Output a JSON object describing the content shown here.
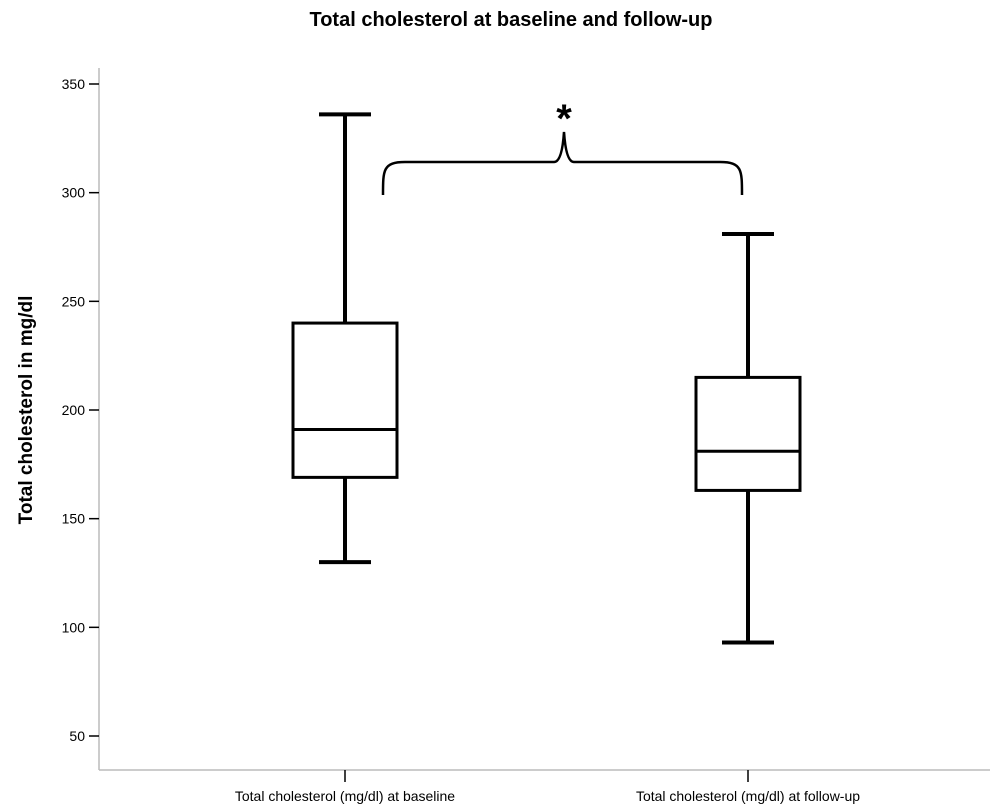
{
  "chart_data": {
    "type": "boxplot",
    "title": "Total cholesterol at baseline and follow-up",
    "xlabel": "",
    "ylabel": "Total cholesterol in mg/dl",
    "ylim": [
      35,
      352
    ],
    "yticks": [
      50,
      100,
      150,
      200,
      250,
      300,
      350
    ],
    "grid": false,
    "categories": [
      "Total cholesterol (mg/dl) at baseline",
      "Total cholesterol (mg/dl) at follow-up"
    ],
    "boxes": [
      {
        "min": 130,
        "q1": 169,
        "median": 191,
        "q3": 240,
        "max": 336
      },
      {
        "min": 93,
        "q1": 163,
        "median": 181,
        "q3": 215,
        "max": 281
      }
    ],
    "annotation": {
      "text": "*",
      "between": [
        0,
        1
      ]
    },
    "colors": {
      "line": "#000000",
      "axis": "#bbbbbb",
      "box_fill": "#ffffff"
    }
  }
}
